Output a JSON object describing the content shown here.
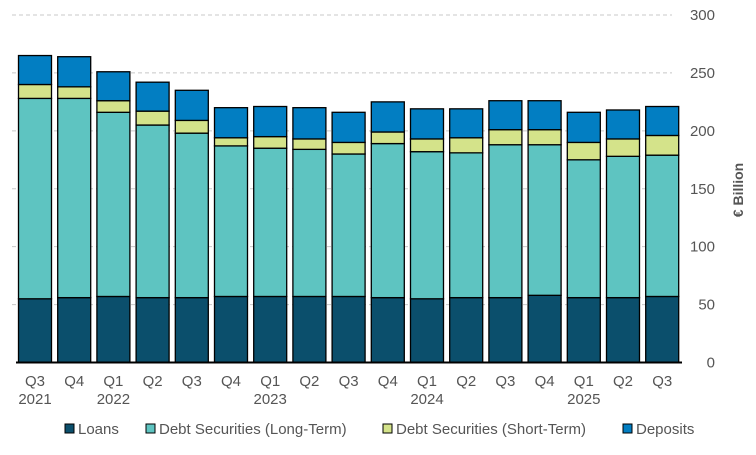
{
  "chart_data": {
    "type": "bar",
    "stacked": true,
    "categories": [
      "Q3 2021",
      "Q4",
      "Q1 2022",
      "Q2",
      "Q3",
      "Q4",
      "Q1 2023",
      "Q2",
      "Q3",
      "Q4",
      "Q1 2024",
      "Q2",
      "Q3",
      "Q4",
      "Q1 2025",
      "Q2",
      "Q3"
    ],
    "category_labels": [
      [
        "Q3",
        "2021"
      ],
      [
        "Q4",
        ""
      ],
      [
        "Q1",
        "2022"
      ],
      [
        "Q2",
        ""
      ],
      [
        "Q3",
        ""
      ],
      [
        "Q4",
        ""
      ],
      [
        "Q1",
        "2023"
      ],
      [
        "Q2",
        ""
      ],
      [
        "Q3",
        ""
      ],
      [
        "Q4",
        ""
      ],
      [
        "Q1",
        "2024"
      ],
      [
        "Q2",
        ""
      ],
      [
        "Q3",
        ""
      ],
      [
        "Q4",
        ""
      ],
      [
        "Q1",
        "2025"
      ],
      [
        "Q2",
        ""
      ],
      [
        "Q3",
        ""
      ]
    ],
    "series": [
      {
        "name": "Loans",
        "color": "#0b4f6c",
        "values": [
          55,
          56,
          57,
          56,
          56,
          57,
          57,
          57,
          57,
          56,
          55,
          56,
          56,
          58,
          56,
          56,
          57
        ]
      },
      {
        "name": "Debt Securities (Long-Term)",
        "color": "#5ec4c1",
        "values": [
          173,
          172,
          159,
          149,
          142,
          130,
          128,
          127,
          123,
          133,
          127,
          125,
          132,
          130,
          119,
          122,
          122
        ]
      },
      {
        "name": "Debt Securities (Short-Term)",
        "color": "#d4e38a",
        "values": [
          12,
          10,
          10,
          12,
          11,
          7,
          10,
          9,
          10,
          10,
          11,
          13,
          13,
          13,
          15,
          15,
          17
        ]
      },
      {
        "name": "Deposits",
        "color": "#027ec2",
        "values": [
          25,
          26,
          25,
          25,
          26,
          26,
          26,
          27,
          26,
          26,
          26,
          25,
          25,
          25,
          26,
          25,
          25
        ]
      }
    ],
    "ylabel": "€ Billion",
    "ylim": [
      0,
      300
    ],
    "yticks": [
      0,
      50,
      100,
      150,
      200,
      250,
      300
    ],
    "y_axis_side": "right",
    "grid": true,
    "legend_position": "bottom"
  }
}
